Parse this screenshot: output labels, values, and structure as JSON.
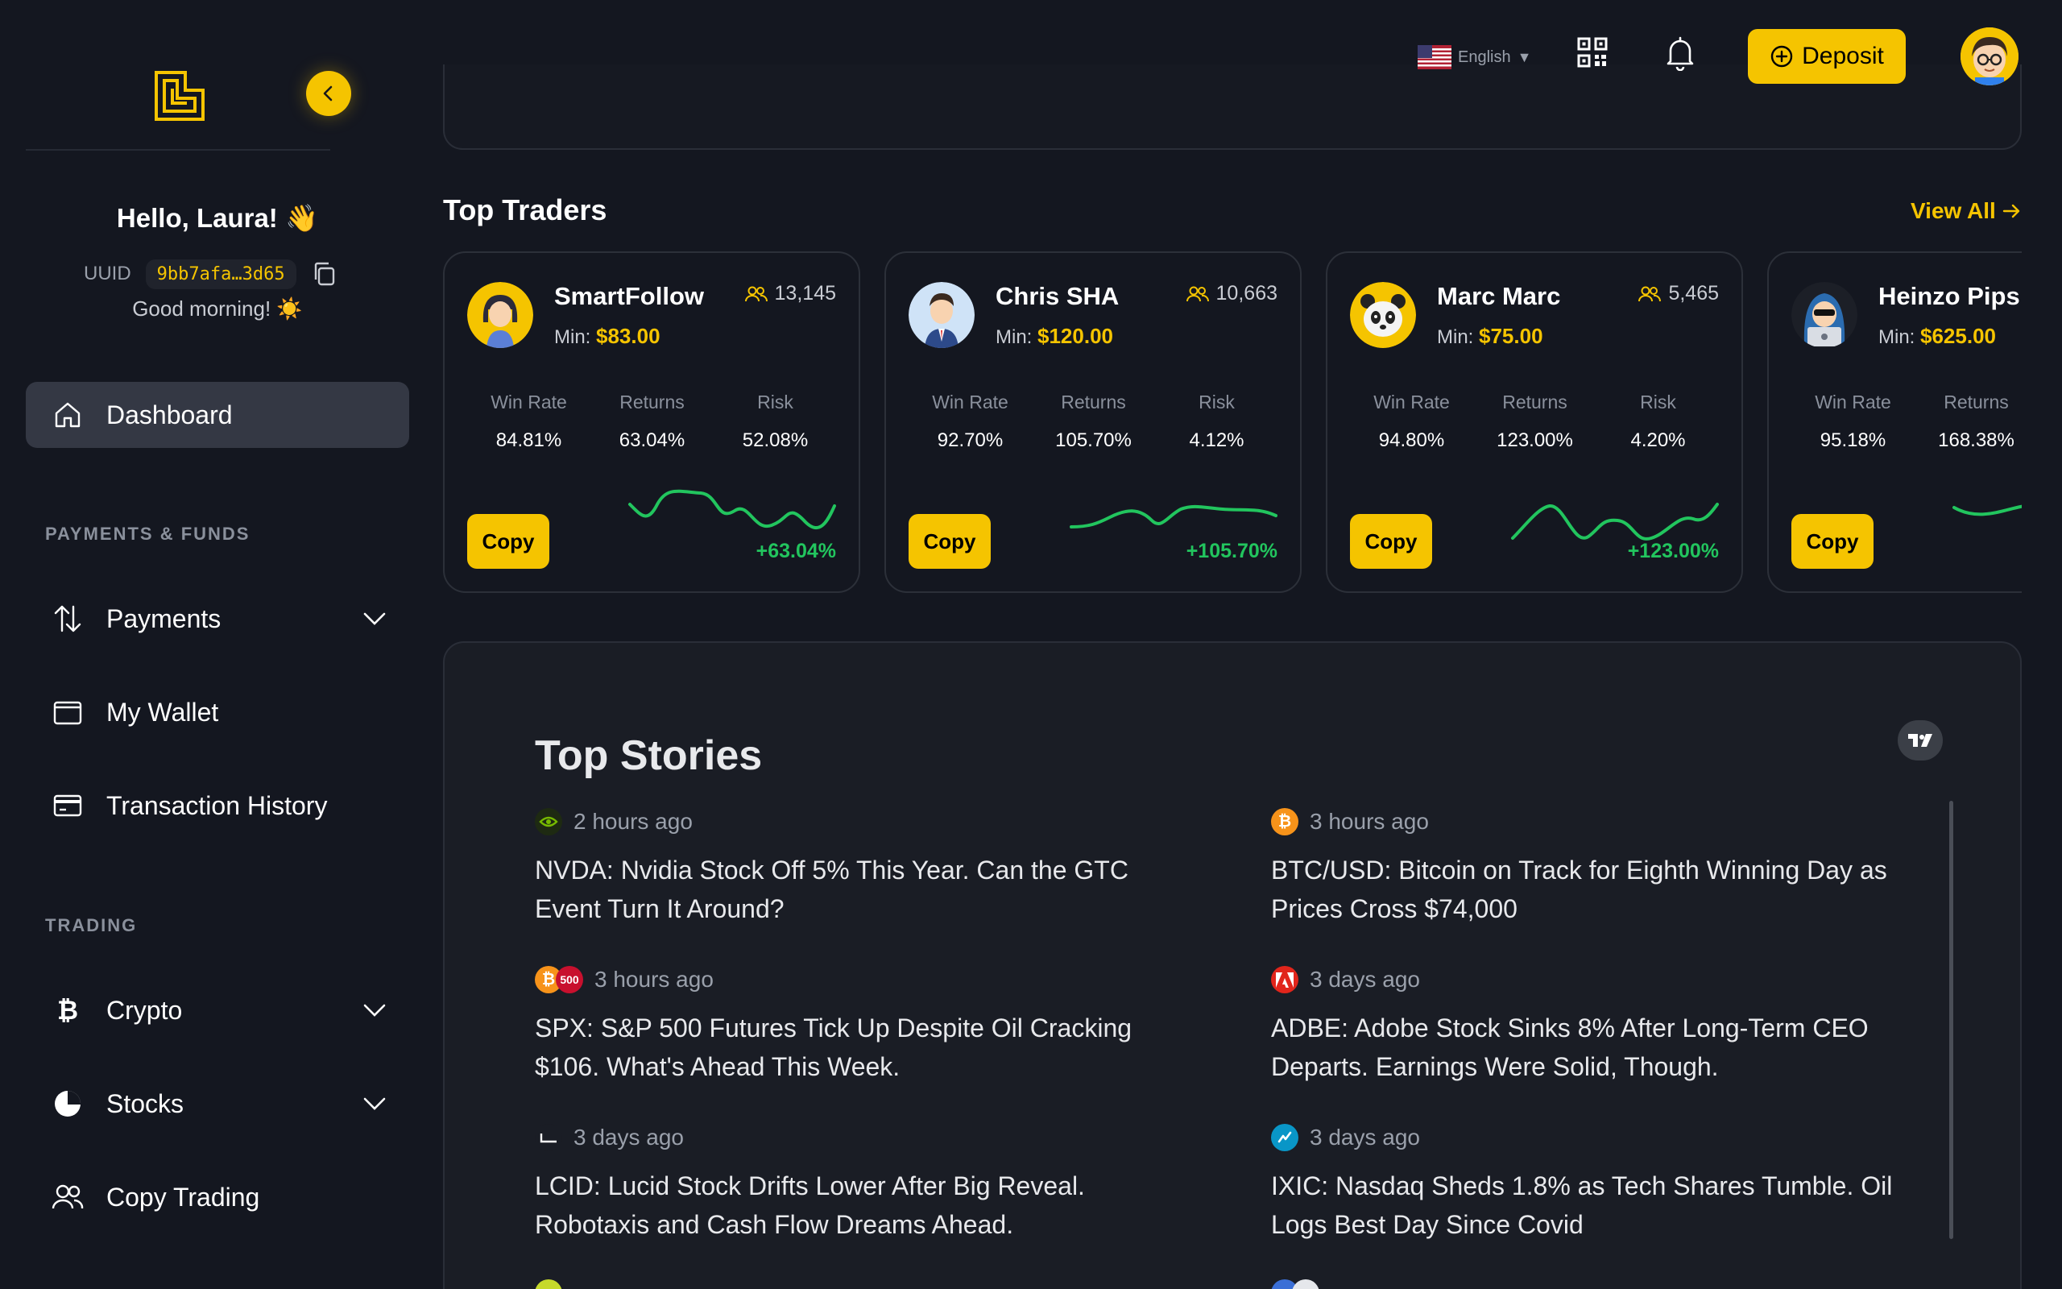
{
  "sidebar": {
    "greeting_hello": "Hello, Laura! 👋",
    "uuid_label": "UUID",
    "uuid_value": "9bb7afa…3d65",
    "greeting_time": "Good morning! ☀️",
    "dashboard_label": "Dashboard",
    "section_payments": "PAYMENTS & FUNDS",
    "payments_label": "Payments",
    "wallet_label": "My Wallet",
    "history_label": "Transaction History",
    "section_trading": "TRADING",
    "crypto_label": "Crypto",
    "stocks_label": "Stocks",
    "copy_trading_label": "Copy Trading"
  },
  "header": {
    "language": "English",
    "deposit_label": "Deposit"
  },
  "top_traders": {
    "title": "Top Traders",
    "view_all": "View All",
    "stat_labels": {
      "win_rate": "Win Rate",
      "returns": "Returns",
      "risk": "Risk"
    },
    "min_label": "Min:",
    "copy_label": "Copy",
    "traders": [
      {
        "name": "SmartFollow",
        "followers": "13,145",
        "min": "$83.00",
        "win_rate": "84.81%",
        "returns": "63.04%",
        "risk": "52.08%",
        "gain": "+63.04%",
        "avatar": "woman-avatar"
      },
      {
        "name": "Chris SHA",
        "followers": "10,663",
        "min": "$120.00",
        "win_rate": "92.70%",
        "returns": "105.70%",
        "risk": "4.12%",
        "gain": "+105.70%",
        "avatar": "businessman-avatar"
      },
      {
        "name": "Marc Marc",
        "followers": "5,465",
        "min": "$75.00",
        "win_rate": "94.80%",
        "returns": "123.00%",
        "risk": "4.20%",
        "gain": "+123.00%",
        "avatar": "panda-avatar"
      },
      {
        "name": "Heinzo Pips",
        "followers": "",
        "min": "$625.00",
        "win_rate": "95.18%",
        "returns": "168.38%",
        "risk": "",
        "gain": "",
        "avatar": "hacker-avatar"
      }
    ]
  },
  "top_stories": {
    "title": "Top Stories",
    "stories": [
      {
        "time": "2 hours ago",
        "title": "NVDA: Nvidia Stock Off 5% This Year. Can the GTC Event Turn It Around?",
        "icon": "nvidia-icon"
      },
      {
        "time": "3 hours ago",
        "title": "BTC/USD: Bitcoin on Track for Eighth Winning Day as Prices Cross $74,000",
        "icon": "bitcoin-icon"
      },
      {
        "time": "3 hours ago",
        "title": "SPX: S&P 500 Futures Tick Up Despite Oil Cracking $106. What's Ahead This Week.",
        "icon": "spx-icon",
        "badge": "500"
      },
      {
        "time": "3 days ago",
        "title": "ADBE: Adobe Stock Sinks 8% After Long-Term CEO Departs. Earnings Were Solid, Though.",
        "icon": "adobe-icon"
      },
      {
        "time": "3 days ago",
        "title": "LCID: Lucid Stock Drifts Lower After Big Reveal. Robotaxis and Cash Flow Dreams Ahead.",
        "icon": "lucid-icon"
      },
      {
        "time": "3 days ago",
        "title": "IXIC: Nasdaq Sheds 1.8% as Tech Shares Tumble. Oil Logs Best Day Since Covid",
        "icon": "nasdaq-icon"
      }
    ]
  },
  "colors": {
    "accent": "#f5c400",
    "positive": "#22c55e",
    "background": "#141720"
  }
}
